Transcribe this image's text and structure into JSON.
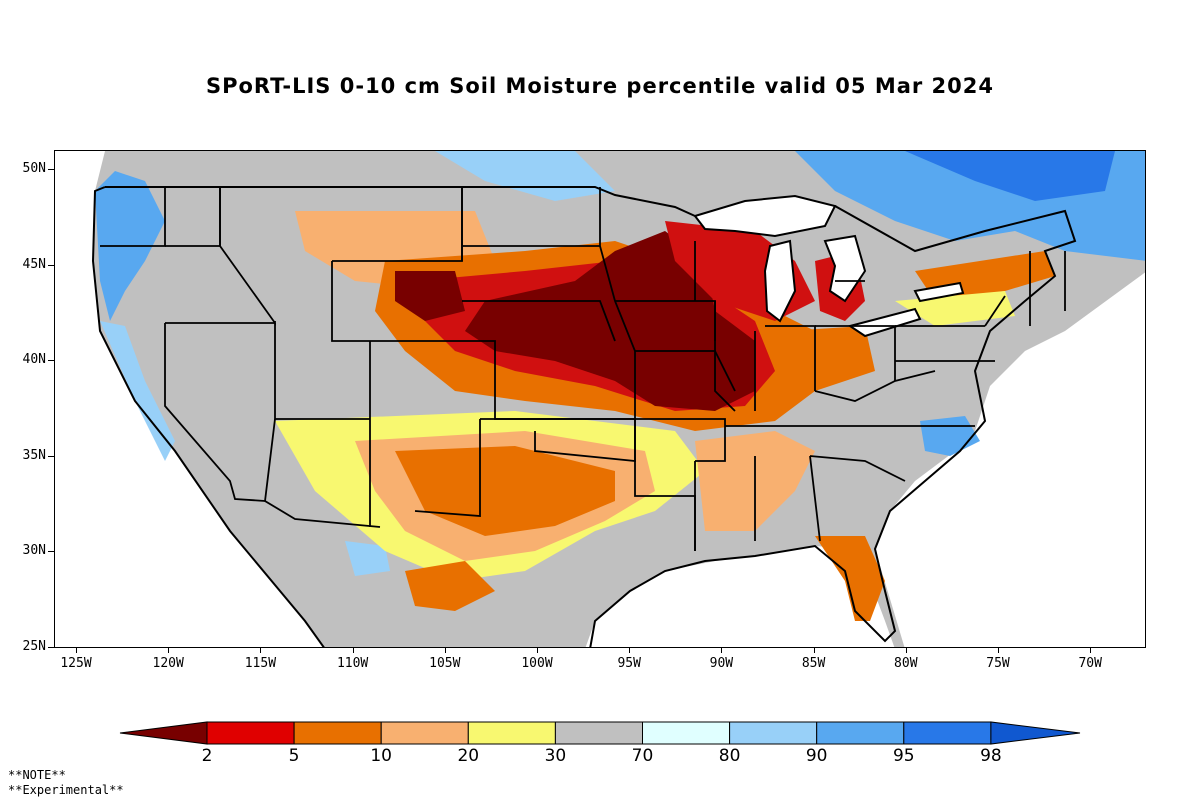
{
  "title": "SPoRT-LIS 0-10 cm Soil Moisture percentile valid 05 Mar 2024",
  "lat_labels": [
    "50N",
    "45N",
    "40N",
    "35N",
    "30N",
    "25N"
  ],
  "lon_labels": [
    "125W",
    "120W",
    "115W",
    "110W",
    "105W",
    "100W",
    "95W",
    "90W",
    "85W",
    "80W",
    "75W",
    "70W"
  ],
  "colorbar": {
    "labels": [
      "2",
      "5",
      "10",
      "20",
      "30",
      "70",
      "80",
      "90",
      "95",
      "98"
    ],
    "colors": [
      "#780000",
      "#e00000",
      "#e87000",
      "#f8b070",
      "#f8f870",
      "#c0c0c0",
      "#e0ffff",
      "#98d0f8",
      "#58a8f0",
      "#2878e8",
      "#1058d0"
    ]
  },
  "notes": [
    "**NOTE**",
    "**Experimental**"
  ],
  "map_colors": {
    "background_gray": "#c0c0c0",
    "dry_extreme": "#780000",
    "dry_red": "#d01010",
    "dry_orange": "#e87000",
    "dry_tan": "#f8b070",
    "dry_yellow": "#f8f870",
    "wet_pale": "#e0ffff",
    "wet_light": "#98d0f8",
    "wet_mid": "#58a8f0",
    "wet_deep": "#2878e8",
    "water": "#ffffff"
  }
}
